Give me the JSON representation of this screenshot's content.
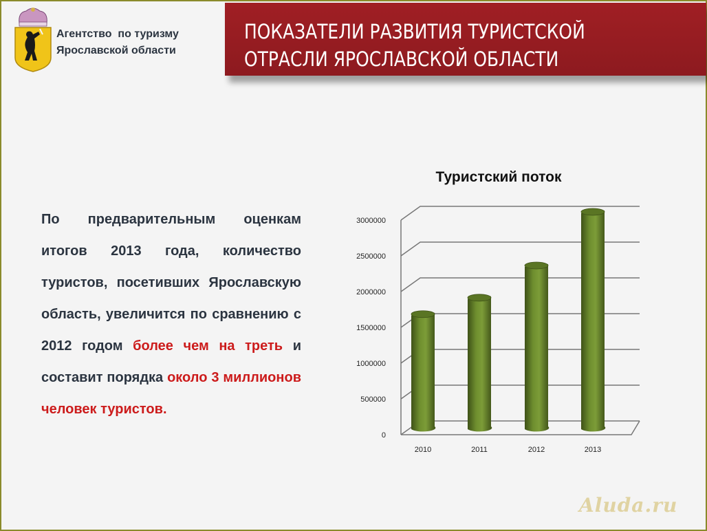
{
  "header": {
    "org_name_line1": "Агентство  по туризму",
    "org_name_line2": "Ярославской области",
    "logo_icon": "yaroslavl-coat-of-arms-bear-icon",
    "title_line1": "ПОКАЗАТЕЛИ РАЗВИТИЯ ТУРИСТСКОЙ",
    "title_line2": "ОТРАСЛИ ЯРОСЛАВСКОЙ ОБЛАСТИ",
    "banner_color": "#9a1d22"
  },
  "body": {
    "text_part1": "По предварительным оценкам итогов 2013 года, количество туристов, посетивших Ярославскую область, увеличится по сравнению с 2012 годом ",
    "text_highlight1": "более чем на треть",
    "text_part2": " и составит порядка ",
    "text_highlight2": "около 3 миллионов человек туристов.",
    "text_color": "#2b3440",
    "highlight_color": "#cc1b1b"
  },
  "chart_data": {
    "type": "bar",
    "style": "3d-cylinder",
    "title": "Туристский поток",
    "categories": [
      "2010",
      "2011",
      "2012",
      "2013"
    ],
    "values": [
      1570000,
      1800000,
      2250000,
      3000000
    ],
    "xlabel": "",
    "ylabel": "",
    "ylim": [
      0,
      3000000
    ],
    "yticks": [
      "0",
      "500000",
      "1000000",
      "1500000",
      "2000000",
      "2500000",
      "3000000"
    ],
    "grid": true,
    "legend": false,
    "bar_color": "#6b8a2e"
  },
  "watermark": "Aluda.ru"
}
